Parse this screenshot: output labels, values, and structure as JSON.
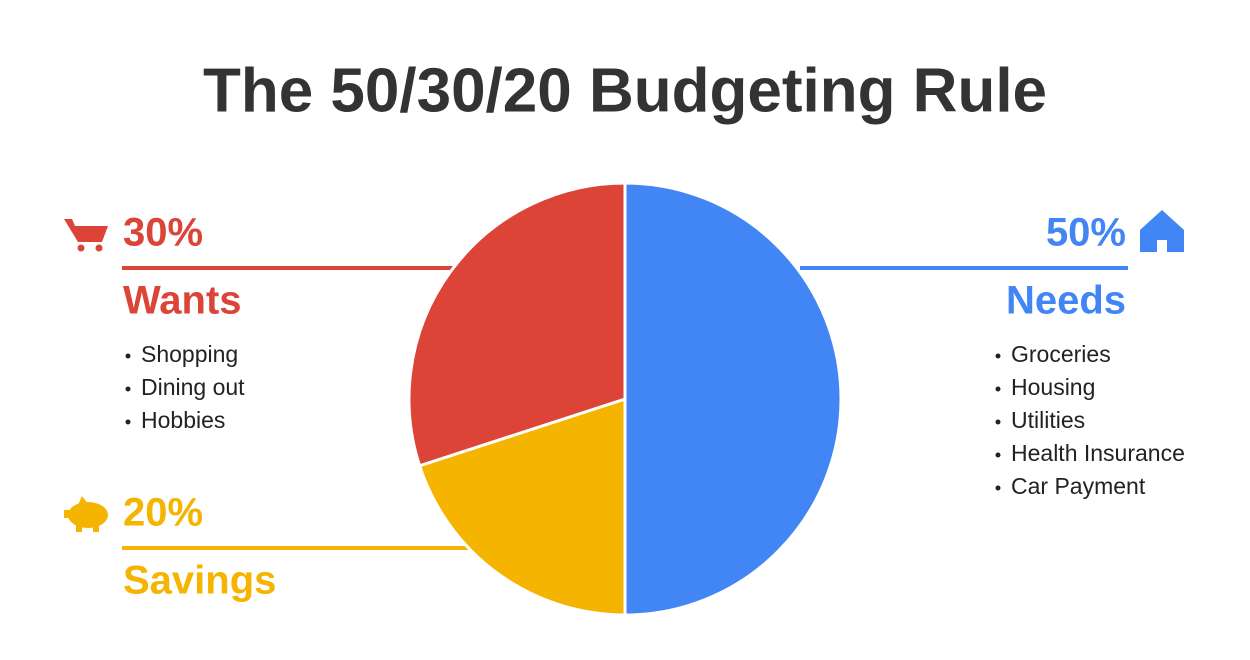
{
  "chart_data": {
    "type": "pie",
    "title": "The 50/30/20 Budgeting Rule",
    "categories": [
      "Needs",
      "Savings",
      "Wants"
    ],
    "values": [
      50,
      20,
      30
    ],
    "value_labels": [
      "50%",
      "20%",
      "30%"
    ],
    "colors": [
      "#4285f4",
      "#f4b400",
      "#db4437"
    ],
    "items": [
      [
        "Groceries",
        "Housing",
        "Utilities",
        "Health Insurance",
        "Car Payment"
      ],
      [],
      [
        "Shopping",
        "Dining out",
        "Hobbies"
      ]
    ]
  }
}
